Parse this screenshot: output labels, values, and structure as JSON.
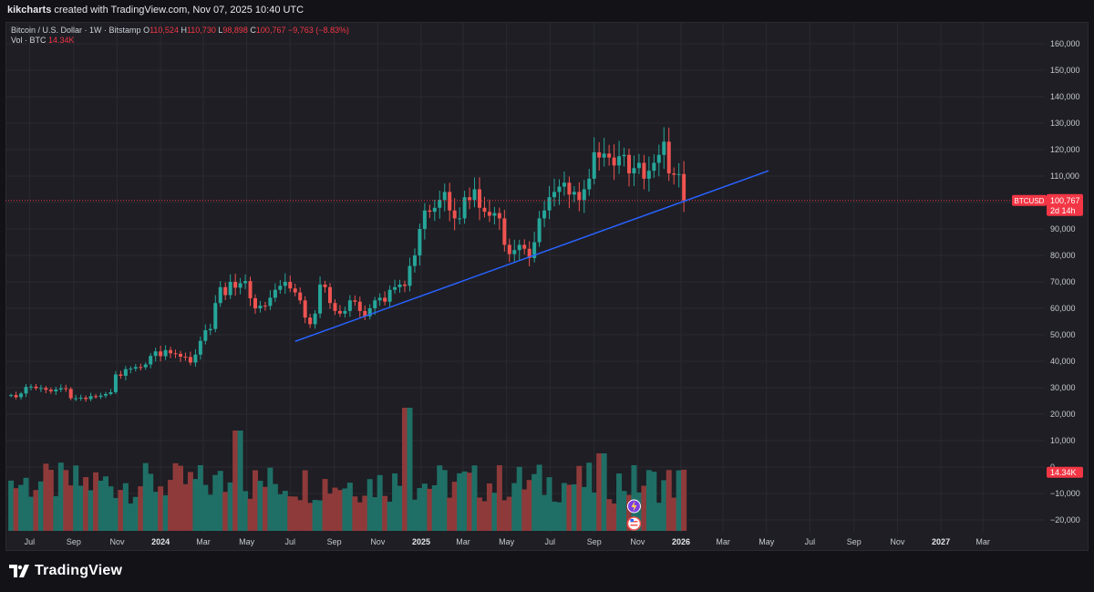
{
  "header": {
    "author": "kikcharts",
    "created_text": "created with TradingView.com, Nov 07, 2025 10:40 UTC"
  },
  "legend": {
    "symbol": "Bitcoin / U.S. Dollar · 1W · Bitstamp",
    "o_label": "O",
    "o_value": "110,524",
    "h_label": "H",
    "h_value": "110,730",
    "l_label": "L",
    "l_value": "98,898",
    "c_label": "C",
    "c_value": "100,767",
    "change": "−9,763 (−8.83%)",
    "vol_label": "Vol · BTC",
    "vol_value": "14.34K"
  },
  "price_tag": {
    "ticker": "BTCUSD",
    "price": "100,767",
    "countdown": "2d 14h",
    "volume": "14.34K"
  },
  "branding": {
    "logo_text": "TradingView"
  },
  "colors": {
    "up": "#26a69a",
    "down": "#ef5350",
    "trendline": "#2962ff",
    "price_tag": "#f23645"
  },
  "icons": [
    "lightning-event-icon",
    "us-flag-event-icon"
  ],
  "chart_data": {
    "type": "candlestick",
    "interval": "1W",
    "y_axis_labels": [
      "160,000",
      "150,000",
      "140,000",
      "130,000",
      "120,000",
      "110,000",
      "100,000",
      "90,000",
      "80,000",
      "70,000",
      "60,000",
      "50,000",
      "40,000",
      "30,000",
      "20,000",
      "10,000",
      "0",
      "−10,000",
      "−20,000"
    ],
    "y_ticks": [
      160000,
      150000,
      140000,
      130000,
      120000,
      110000,
      100000,
      90000,
      80000,
      70000,
      60000,
      50000,
      40000,
      30000,
      20000,
      10000,
      0,
      -10000,
      -20000
    ],
    "ylim": [
      -25000,
      164000
    ],
    "x_axis_labels": [
      {
        "label": "Jul",
        "date": "2023-07-01",
        "bold": false
      },
      {
        "label": "Sep",
        "date": "2023-09-01",
        "bold": false
      },
      {
        "label": "Nov",
        "date": "2023-11-01",
        "bold": false
      },
      {
        "label": "2024",
        "date": "2024-01-01",
        "bold": true
      },
      {
        "label": "Mar",
        "date": "2024-03-01",
        "bold": false
      },
      {
        "label": "May",
        "date": "2024-05-01",
        "bold": false
      },
      {
        "label": "Jul",
        "date": "2024-07-01",
        "bold": false
      },
      {
        "label": "Sep",
        "date": "2024-09-01",
        "bold": false
      },
      {
        "label": "Nov",
        "date": "2024-11-01",
        "bold": false
      },
      {
        "label": "2025",
        "date": "2025-01-01",
        "bold": true
      },
      {
        "label": "Mar",
        "date": "2025-03-01",
        "bold": false
      },
      {
        "label": "May",
        "date": "2025-05-01",
        "bold": false
      },
      {
        "label": "Jul",
        "date": "2025-07-01",
        "bold": false
      },
      {
        "label": "Sep",
        "date": "2025-09-01",
        "bold": false
      },
      {
        "label": "Nov",
        "date": "2025-11-01",
        "bold": false
      },
      {
        "label": "2026",
        "date": "2026-01-01",
        "bold": true
      },
      {
        "label": "Mar",
        "date": "2026-03-01",
        "bold": false
      },
      {
        "label": "May",
        "date": "2026-05-01",
        "bold": false
      },
      {
        "label": "Jul",
        "date": "2026-07-01",
        "bold": false
      },
      {
        "label": "Sep",
        "date": "2026-09-01",
        "bold": false
      },
      {
        "label": "Nov",
        "date": "2026-11-01",
        "bold": false
      },
      {
        "label": "2027",
        "date": "2027-01-01",
        "bold": true
      },
      {
        "label": "Mar",
        "date": "2027-03-01",
        "bold": false
      }
    ],
    "last_price": 100767,
    "trendline": {
      "start": [
        "2024-07-08",
        47500
      ],
      "end": [
        "2026-05-04",
        112000
      ]
    },
    "candles_close": [
      27200,
      26400,
      27800,
      30300,
      30400,
      29800,
      29900,
      29200,
      28600,
      29300,
      29800,
      29500,
      26000,
      26000,
      26200,
      25700,
      26800,
      26500,
      27000,
      27600,
      28300,
      35000,
      34500,
      37000,
      37200,
      37800,
      37700,
      38800,
      42000,
      43700,
      41900,
      44200,
      43000,
      42800,
      41700,
      41600,
      39500,
      42500,
      47700,
      51700,
      52200,
      62000,
      68000,
      65000,
      70000,
      67800,
      69500,
      70300,
      63800,
      60000,
      61000,
      60900,
      64000,
      67000,
      68500,
      70000,
      67500,
      66000,
      63000,
      56500,
      54000,
      58000,
      69000,
      68000,
      62000,
      59000,
      58000,
      59000,
      63000,
      62500,
      59000,
      57000,
      60000,
      63000,
      64000,
      62500,
      67000,
      68000,
      69000,
      68500,
      76000,
      80000,
      90000,
      97000,
      96500,
      98000,
      101000,
      104000,
      97000,
      94000,
      94000,
      102000,
      101000,
      105000,
      98000,
      96500,
      95000,
      96000,
      94000,
      84000,
      80500,
      82000,
      84000,
      82500,
      79000,
      85000,
      94000,
      97000,
      102000,
      104000,
      106000,
      107500,
      103000,
      104000,
      101000,
      105000,
      109000,
      119000,
      117000,
      118500,
      117000,
      114000,
      117500,
      118000,
      111000,
      113000,
      115000,
      109000,
      112000,
      115000,
      118000,
      123000,
      111000,
      110500,
      110767,
      100767
    ],
    "volume_labels": [
      "20,000",
      "10,000",
      "0",
      "−10,000",
      "−20,000"
    ]
  }
}
